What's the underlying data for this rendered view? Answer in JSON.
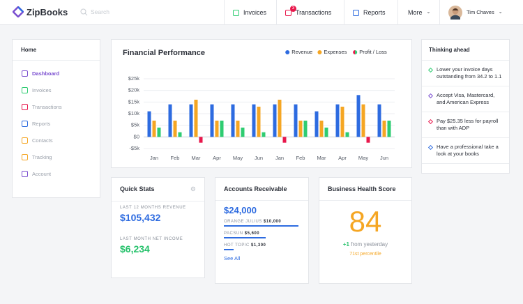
{
  "nav": {
    "logo": "ZipBooks",
    "search_placeholder": "Search",
    "items": [
      {
        "label": "Invoices"
      },
      {
        "label": "Transactions",
        "badge": "3"
      },
      {
        "label": "Reports"
      },
      {
        "label": "More"
      }
    ],
    "user": "Tim Chaves"
  },
  "sidebar": {
    "title": "Home",
    "items": [
      "Dashboard",
      "Invoices",
      "Transactions",
      "Reports",
      "Contacts",
      "Tracking",
      "Account"
    ]
  },
  "chart_data": {
    "type": "bar",
    "title": "Financial Performance",
    "categories": [
      "Jan",
      "Feb",
      "Mar",
      "Apr",
      "May",
      "Jun",
      "Jan",
      "Feb",
      "Mar",
      "Apr",
      "May",
      "Jun"
    ],
    "series": [
      {
        "name": "Revenue",
        "color": "#2d6be0",
        "values": [
          11,
          14,
          14,
          14,
          14,
          14,
          14,
          14,
          11,
          14,
          18,
          14
        ]
      },
      {
        "name": "Expenses",
        "color": "#f5a623",
        "values": [
          7,
          7,
          16,
          7,
          7,
          13,
          16,
          7,
          7,
          13,
          14,
          7
        ]
      },
      {
        "name": "Profit / Loss",
        "color": "#2ecc71",
        "negative_color": "#e8174b",
        "values": [
          4,
          2,
          -2.5,
          7,
          4,
          2,
          -2.5,
          7,
          4,
          2,
          -2.5,
          7
        ]
      }
    ],
    "ylim": [
      -5,
      25
    ],
    "yticks": [
      {
        "value": -5,
        "label": "-$5k"
      },
      {
        "value": 0,
        "label": "$0"
      },
      {
        "value": 5,
        "label": "$5k"
      },
      {
        "value": 10,
        "label": "$10k"
      },
      {
        "value": 15,
        "label": "$15k"
      },
      {
        "value": 20,
        "label": "$20k"
      },
      {
        "value": 25,
        "label": "$25k"
      }
    ],
    "grid": true,
    "legend": "top-right"
  },
  "quick_stats": {
    "title": "Quick Stats",
    "stats": [
      {
        "label": "LAST 12 MONTHS REVENUE",
        "value": "$105,432"
      },
      {
        "label": "LAST MONTH NET INCOME",
        "value": "$6,234"
      }
    ]
  },
  "accounts_receivable": {
    "title": "Accounts Receivable",
    "total": "$24,000",
    "items": [
      {
        "name": "ORANGE JULIUS",
        "amount": {
          "value": 10000,
          "label": "$10,000"
        }
      },
      {
        "name": "PACSUN",
        "amount": {
          "value": 5600,
          "label": "$5,600"
        }
      },
      {
        "name": "HOT TOPIC",
        "amount": {
          "value": 1300,
          "label": "$1,300"
        }
      }
    ],
    "link": "See All"
  },
  "health": {
    "title": "Business Health Score",
    "score": "84",
    "change": "+1",
    "change_text": "from yesterday",
    "percentile": "71st percentile"
  },
  "thinking_ahead": {
    "title": "Thinking ahead",
    "items": [
      "Lower your invoice days outstanding from 34.2 to 1.1",
      "Accept Visa, Mastercard, and American Express",
      "Pay $25.35 less for payroll than with ADP",
      "Have a professional take a look at your books"
    ]
  }
}
